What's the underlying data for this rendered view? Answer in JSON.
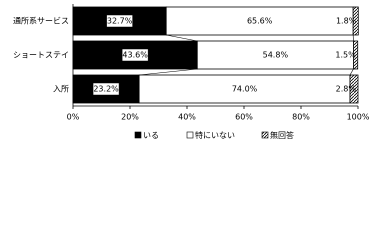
{
  "chart_data": {
    "type": "stacked-bar-horizontal",
    "categories": [
      "通所系サービス",
      "ショートステイ",
      "入所"
    ],
    "series": [
      {
        "name": "いる",
        "color": "#000000",
        "values": [
          32.7,
          43.6,
          23.2
        ],
        "value_labels": [
          "32.7%",
          "43.6%",
          "23.2%"
        ]
      },
      {
        "name": "特にいない",
        "color": "#ffffff",
        "values": [
          65.6,
          54.8,
          74
        ],
        "value_labels": [
          "65.6%",
          "54.8%",
          "74.0%"
        ]
      },
      {
        "name": "無回答",
        "color": "#b0b0b0",
        "values": [
          1.8,
          1.5,
          2.8
        ],
        "value_labels": [
          "1.8%",
          "1.5%",
          "2.8%"
        ]
      }
    ],
    "xlim": [
      0,
      100
    ],
    "xticks": [
      {
        "value": 0,
        "label": "0%"
      },
      {
        "value": 20,
        "label": "20%"
      },
      {
        "value": 40,
        "label": "40%"
      },
      {
        "value": 60,
        "label": "60%"
      },
      {
        "value": 80,
        "label": "80%"
      },
      {
        "value": 100,
        "label": "100%"
      }
    ]
  }
}
